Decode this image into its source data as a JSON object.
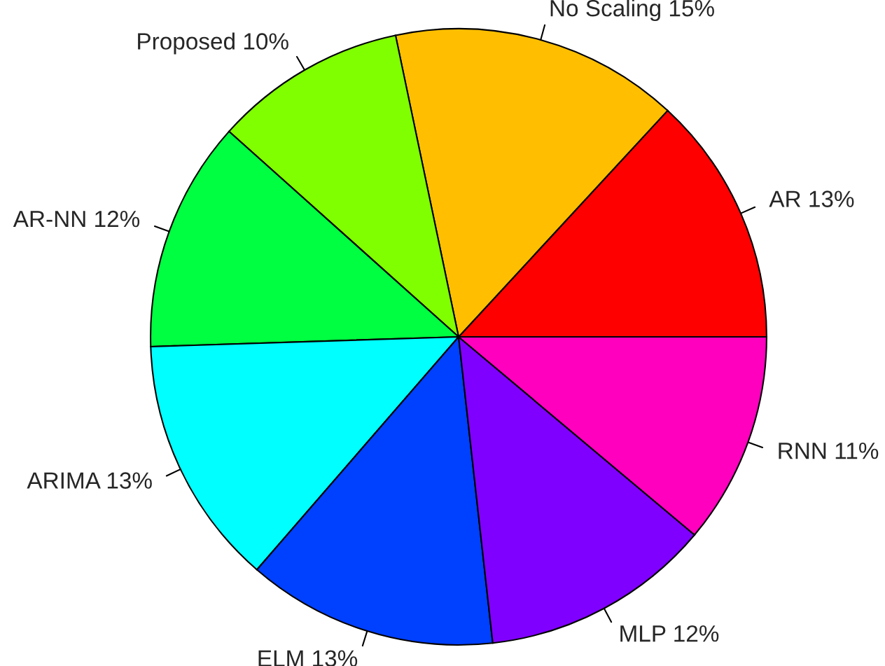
{
  "chart_data": {
    "type": "pie",
    "categories": [
      "AR",
      "No Scaling",
      "Proposed",
      "AR-NN",
      "ARIMA",
      "ELM",
      "MLP",
      "RNN"
    ],
    "values": [
      13,
      15,
      10,
      12,
      13,
      13,
      12,
      11
    ],
    "value_labels": [
      "13%",
      "15%",
      "10%",
      "12%",
      "13%",
      "13%",
      "12%",
      "11%"
    ],
    "colors": [
      "#ff0000",
      "#ffbf00",
      "#80ff00",
      "#00ff40",
      "#00ffff",
      "#0040ff",
      "#8000ff",
      "#ff00bf"
    ],
    "legend": false
  }
}
